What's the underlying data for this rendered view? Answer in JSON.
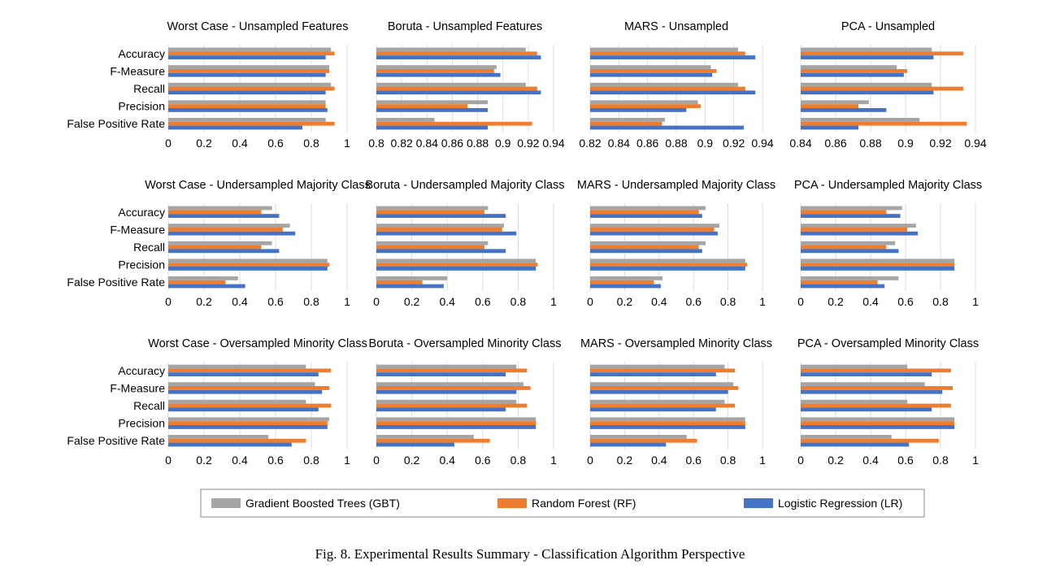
{
  "caption": "Fig. 8.  Experimental Results Summary - Classification Algorithm Perspective",
  "legend": [
    {
      "key": "gbt",
      "label": "Gradient Boosted Trees (GBT)",
      "color": "#a5a5a5"
    },
    {
      "key": "rf",
      "label": "Random Forest (RF)",
      "color": "#ed7d31"
    },
    {
      "key": "lr",
      "label": "Logistic Regression (LR)",
      "color": "#4472c4"
    }
  ],
  "chart_data": [
    {
      "type": "bar",
      "orientation": "horizontal",
      "title": "Worst Case - Unsampled Features",
      "categories": [
        "Accuracy",
        "F-Measure",
        "Recall",
        "Precision",
        "False Positive Rate"
      ],
      "xlim": [
        0,
        1
      ],
      "xticks": [
        "0",
        "0.2",
        "0.4",
        "0.6",
        "0.8",
        "1"
      ],
      "xticks_v": [
        0,
        0.2,
        0.4,
        0.6,
        0.8,
        1
      ],
      "series": [
        {
          "name": "Gradient Boosted Trees (GBT)",
          "values": [
            0.91,
            0.9,
            0.91,
            0.88,
            0.88
          ]
        },
        {
          "name": "Random Forest (RF)",
          "values": [
            0.93,
            0.9,
            0.93,
            0.88,
            0.93
          ]
        },
        {
          "name": "Logistic Regression (LR)",
          "values": [
            0.88,
            0.88,
            0.88,
            0.89,
            0.75
          ]
        }
      ]
    },
    {
      "type": "bar",
      "orientation": "horizontal",
      "title": "Boruta - Unsampled Features",
      "categories": [
        "Accuracy",
        "F-Measure",
        "Recall",
        "Precision",
        "False Positive Rate"
      ],
      "xlim": [
        0.8,
        0.94
      ],
      "xticks": [
        "0.8",
        "0.82",
        "0.84",
        "0.86",
        "0.88",
        "0.9",
        "0.92",
        "0.94"
      ],
      "xticks_v": [
        0.8,
        0.82,
        0.84,
        0.86,
        0.88,
        0.9,
        0.92,
        0.94
      ],
      "series": [
        {
          "name": "Gradient Boosted Trees (GBT)",
          "values": [
            0.918,
            0.895,
            0.918,
            0.888,
            0.846
          ]
        },
        {
          "name": "Random Forest (RF)",
          "values": [
            0.927,
            0.893,
            0.927,
            0.872,
            0.923
          ]
        },
        {
          "name": "Logistic Regression (LR)",
          "values": [
            0.93,
            0.898,
            0.93,
            0.888,
            0.888
          ]
        }
      ]
    },
    {
      "type": "bar",
      "orientation": "horizontal",
      "title": "MARS - Unsampled",
      "categories": [
        "Accuracy",
        "F-Measure",
        "Recall",
        "Precision",
        "False Positive Rate"
      ],
      "xlim": [
        0.82,
        0.94
      ],
      "xticks": [
        "0.82",
        "0.84",
        "0.86",
        "0.88",
        "0.9",
        "0.92",
        "0.94"
      ],
      "xticks_v": [
        0.82,
        0.84,
        0.86,
        0.88,
        0.9,
        0.92,
        0.94
      ],
      "series": [
        {
          "name": "Gradient Boosted Trees (GBT)",
          "values": [
            0.923,
            0.904,
            0.923,
            0.895,
            0.872
          ]
        },
        {
          "name": "Random Forest (RF)",
          "values": [
            0.928,
            0.908,
            0.928,
            0.897,
            0.87
          ]
        },
        {
          "name": "Logistic Regression (LR)",
          "values": [
            0.935,
            0.905,
            0.935,
            0.887,
            0.927
          ]
        }
      ]
    },
    {
      "type": "bar",
      "orientation": "horizontal",
      "title": "PCA - Unsampled",
      "categories": [
        "Accuracy",
        "F-Measure",
        "Recall",
        "Precision",
        "False Positive Rate"
      ],
      "xlim": [
        0.84,
        0.94
      ],
      "xticks": [
        "0.84",
        "0.86",
        "0.88",
        "0.9",
        "0.92",
        "0.94"
      ],
      "xticks_v": [
        0.84,
        0.86,
        0.88,
        0.9,
        0.92,
        0.94
      ],
      "series": [
        {
          "name": "Gradient Boosted Trees (GBT)",
          "values": [
            0.915,
            0.895,
            0.915,
            0.879,
            0.908
          ]
        },
        {
          "name": "Random Forest (RF)",
          "values": [
            0.933,
            0.901,
            0.933,
            0.873,
            0.935
          ]
        },
        {
          "name": "Logistic Regression (LR)",
          "values": [
            0.916,
            0.899,
            0.916,
            0.889,
            0.873
          ]
        }
      ]
    },
    {
      "type": "bar",
      "orientation": "horizontal",
      "title": "Worst Case - Undersampled Majority Class",
      "categories": [
        "Accuracy",
        "F-Measure",
        "Recall",
        "Precision",
        "False Positive Rate"
      ],
      "xlim": [
        0,
        1
      ],
      "xticks": [
        "0",
        "0.2",
        "0.4",
        "0.6",
        "0.8",
        "1"
      ],
      "xticks_v": [
        0,
        0.2,
        0.4,
        0.6,
        0.8,
        1
      ],
      "series": [
        {
          "name": "Gradient Boosted Trees (GBT)",
          "values": [
            0.58,
            0.68,
            0.58,
            0.89,
            0.39
          ]
        },
        {
          "name": "Random Forest (RF)",
          "values": [
            0.52,
            0.64,
            0.52,
            0.9,
            0.32
          ]
        },
        {
          "name": "Logistic Regression (LR)",
          "values": [
            0.62,
            0.71,
            0.62,
            0.89,
            0.43
          ]
        }
      ]
    },
    {
      "type": "bar",
      "orientation": "horizontal",
      "title": "Boruta - Undersampled Majority Class",
      "categories": [
        "Accuracy",
        "F-Measure",
        "Recall",
        "Precision",
        "False Positive Rate"
      ],
      "xlim": [
        0,
        1
      ],
      "xticks": [
        "0",
        "0.2",
        "0.4",
        "0.6",
        "0.8",
        "1"
      ],
      "xticks_v": [
        0,
        0.2,
        0.4,
        0.6,
        0.8,
        1
      ],
      "series": [
        {
          "name": "Gradient Boosted Trees (GBT)",
          "values": [
            0.63,
            0.72,
            0.63,
            0.9,
            0.4
          ]
        },
        {
          "name": "Random Forest (RF)",
          "values": [
            0.61,
            0.71,
            0.61,
            0.91,
            0.26
          ]
        },
        {
          "name": "Logistic Regression (LR)",
          "values": [
            0.73,
            0.79,
            0.73,
            0.9,
            0.38
          ]
        }
      ]
    },
    {
      "type": "bar",
      "orientation": "horizontal",
      "title": "MARS - Undersampled Majority Class",
      "categories": [
        "Accuracy",
        "F-Measure",
        "Recall",
        "Precision",
        "False Positive Rate"
      ],
      "xlim": [
        0,
        1
      ],
      "xticks": [
        "0",
        "0.2",
        "0.4",
        "0.6",
        "0.8",
        "1"
      ],
      "xticks_v": [
        0,
        0.2,
        0.4,
        0.6,
        0.8,
        1
      ],
      "series": [
        {
          "name": "Gradient Boosted Trees (GBT)",
          "values": [
            0.67,
            0.75,
            0.67,
            0.9,
            0.42
          ]
        },
        {
          "name": "Random Forest (RF)",
          "values": [
            0.63,
            0.72,
            0.63,
            0.91,
            0.37
          ]
        },
        {
          "name": "Logistic Regression (LR)",
          "values": [
            0.65,
            0.74,
            0.65,
            0.9,
            0.41
          ]
        }
      ]
    },
    {
      "type": "bar",
      "orientation": "horizontal",
      "title": "PCA - Undersampled Majority Class",
      "categories": [
        "Accuracy",
        "F-Measure",
        "Recall",
        "Precision",
        "False Positive Rate"
      ],
      "xlim": [
        0,
        1
      ],
      "xticks": [
        "0",
        "0.2",
        "0.4",
        "0.6",
        "0.8",
        "1"
      ],
      "xticks_v": [
        0,
        0.2,
        0.4,
        0.6,
        0.8,
        1
      ],
      "series": [
        {
          "name": "Gradient Boosted Trees (GBT)",
          "values": [
            0.58,
            0.66,
            0.54,
            0.88,
            0.56
          ]
        },
        {
          "name": "Random Forest (RF)",
          "values": [
            0.49,
            0.61,
            0.49,
            0.88,
            0.44
          ]
        },
        {
          "name": "Logistic Regression (LR)",
          "values": [
            0.57,
            0.67,
            0.56,
            0.88,
            0.48
          ]
        }
      ]
    },
    {
      "type": "bar",
      "orientation": "horizontal",
      "title": "Worst Case - Oversampled Minority Class",
      "categories": [
        "Accuracy",
        "F-Measure",
        "Recall",
        "Precision",
        "False Positive Rate"
      ],
      "xlim": [
        0,
        1
      ],
      "xticks": [
        "0",
        "0.2",
        "0.4",
        "0.6",
        "0.8",
        "1"
      ],
      "xticks_v": [
        0,
        0.2,
        0.4,
        0.6,
        0.8,
        1
      ],
      "series": [
        {
          "name": "Gradient Boosted Trees (GBT)",
          "values": [
            0.77,
            0.82,
            0.77,
            0.9,
            0.56
          ]
        },
        {
          "name": "Random Forest (RF)",
          "values": [
            0.91,
            0.9,
            0.91,
            0.89,
            0.77
          ]
        },
        {
          "name": "Logistic Regression (LR)",
          "values": [
            0.84,
            0.86,
            0.84,
            0.89,
            0.69
          ]
        }
      ]
    },
    {
      "type": "bar",
      "orientation": "horizontal",
      "title": "Boruta - Oversampled Minority Class",
      "categories": [
        "Accuracy",
        "F-Measure",
        "Recall",
        "Precision",
        "False Positive Rate"
      ],
      "xlim": [
        0,
        1
      ],
      "xticks": [
        "0",
        "0.2",
        "0.4",
        "0.6",
        "0.8",
        "1"
      ],
      "xticks_v": [
        0,
        0.2,
        0.4,
        0.6,
        0.8,
        1
      ],
      "series": [
        {
          "name": "Gradient Boosted Trees (GBT)",
          "values": [
            0.79,
            0.83,
            0.79,
            0.9,
            0.55
          ]
        },
        {
          "name": "Random Forest (RF)",
          "values": [
            0.85,
            0.87,
            0.85,
            0.9,
            0.64
          ]
        },
        {
          "name": "Logistic Regression (LR)",
          "values": [
            0.73,
            0.79,
            0.73,
            0.9,
            0.44
          ]
        }
      ]
    },
    {
      "type": "bar",
      "orientation": "horizontal",
      "title": "MARS - Oversampled Minority Class",
      "categories": [
        "Accuracy",
        "F-Measure",
        "Recall",
        "Precision",
        "False Positive Rate"
      ],
      "xlim": [
        0,
        1
      ],
      "xticks": [
        "0",
        "0.2",
        "0.4",
        "0.6",
        "0.8",
        "1"
      ],
      "xticks_v": [
        0,
        0.2,
        0.4,
        0.6,
        0.8,
        1
      ],
      "series": [
        {
          "name": "Gradient Boosted Trees (GBT)",
          "values": [
            0.78,
            0.83,
            0.78,
            0.9,
            0.56
          ]
        },
        {
          "name": "Random Forest (RF)",
          "values": [
            0.84,
            0.86,
            0.84,
            0.9,
            0.62
          ]
        },
        {
          "name": "Logistic Regression (LR)",
          "values": [
            0.73,
            0.8,
            0.73,
            0.9,
            0.44
          ]
        }
      ]
    },
    {
      "type": "bar",
      "orientation": "horizontal",
      "title": "PCA - Oversampled Minority Class",
      "categories": [
        "Accuracy",
        "F-Measure",
        "Recall",
        "Precision",
        "False Positive Rate"
      ],
      "xlim": [
        0,
        1
      ],
      "xticks": [
        "0",
        "0.2",
        "0.4",
        "0.6",
        "0.8",
        "1"
      ],
      "xticks_v": [
        0,
        0.2,
        0.4,
        0.6,
        0.8,
        1
      ],
      "series": [
        {
          "name": "Gradient Boosted Trees (GBT)",
          "values": [
            0.61,
            0.71,
            0.61,
            0.88,
            0.52
          ]
        },
        {
          "name": "Random Forest (RF)",
          "values": [
            0.86,
            0.87,
            0.86,
            0.88,
            0.79
          ]
        },
        {
          "name": "Logistic Regression (LR)",
          "values": [
            0.75,
            0.81,
            0.75,
            0.88,
            0.62
          ]
        }
      ]
    }
  ]
}
